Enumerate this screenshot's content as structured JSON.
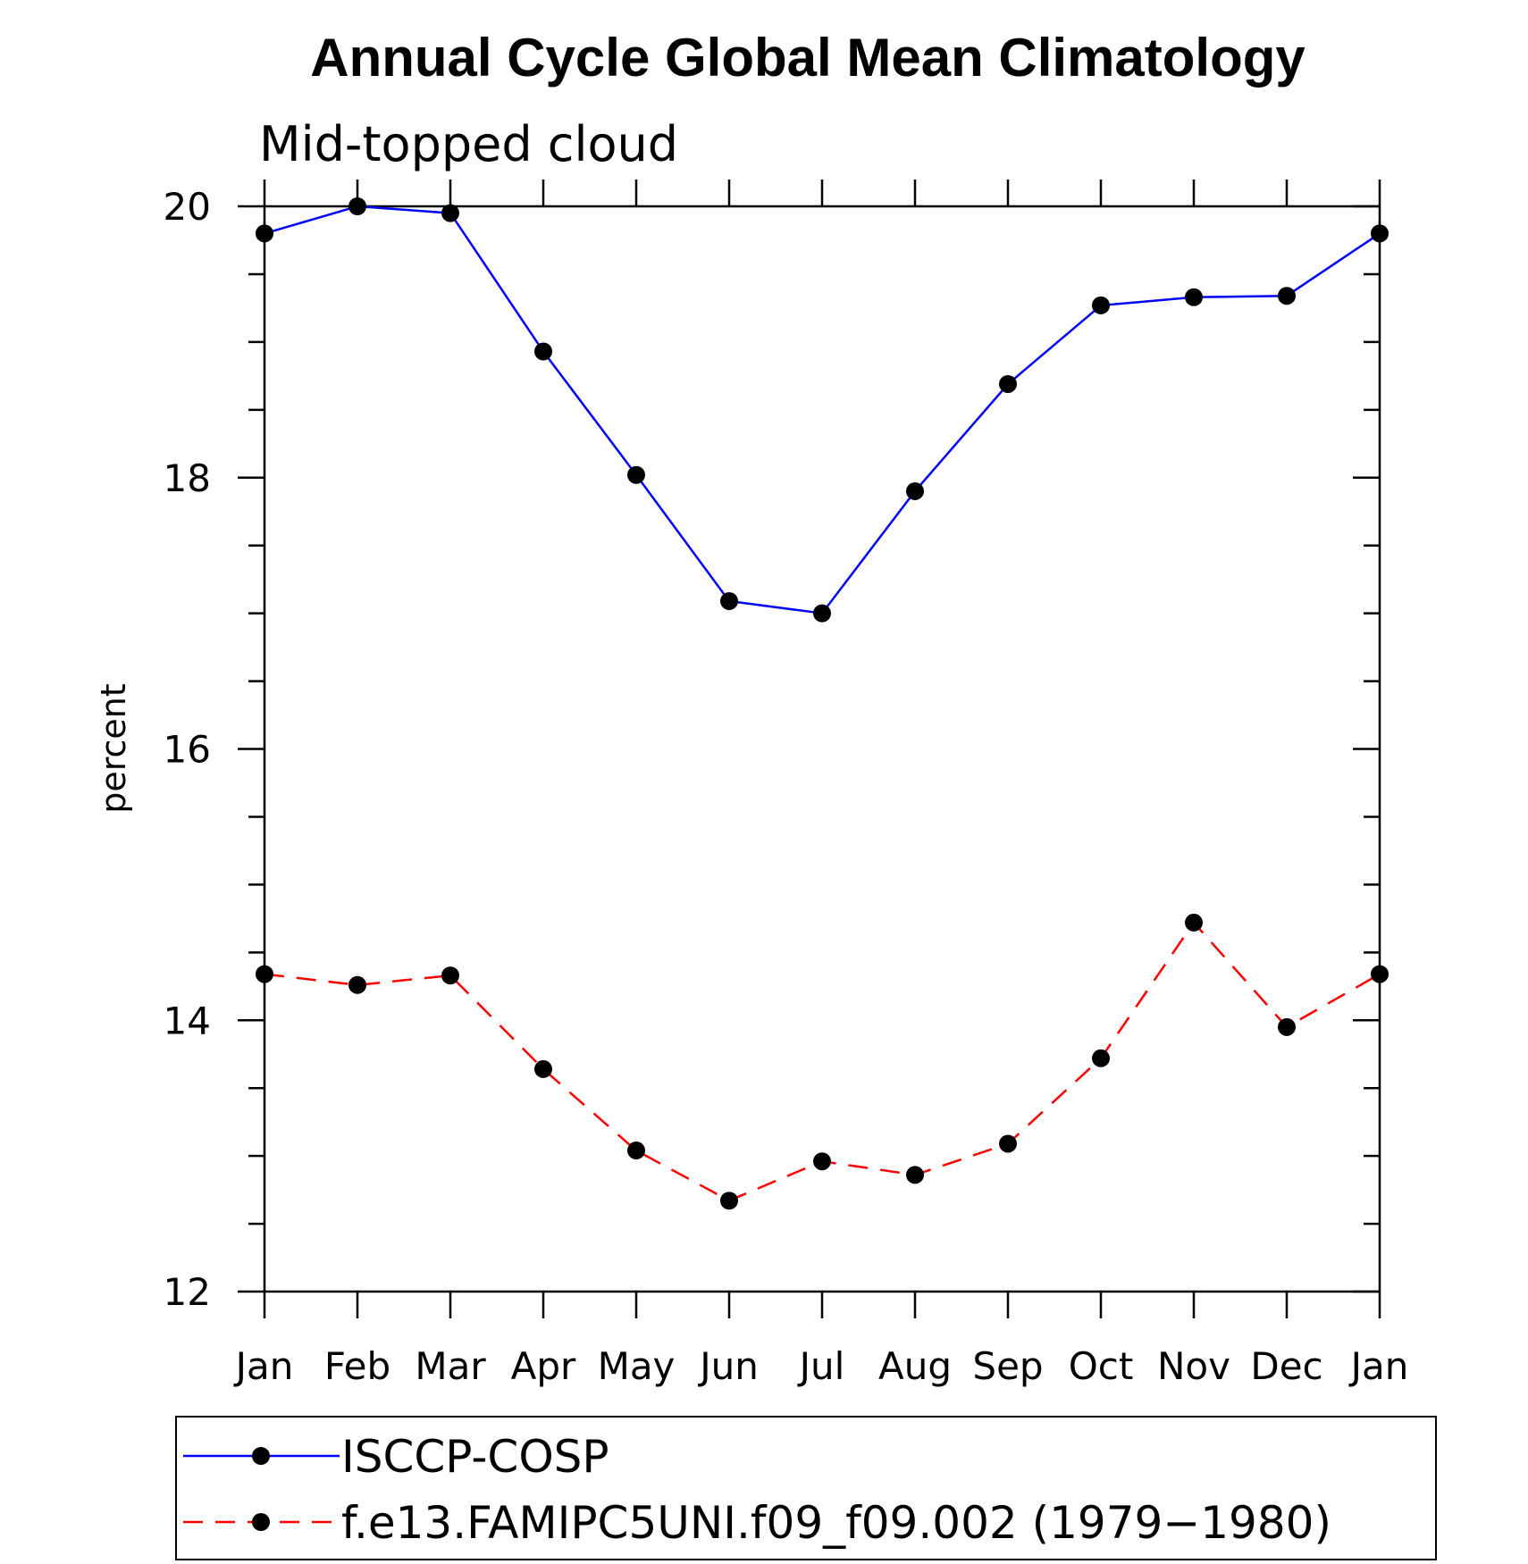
{
  "chart_data": {
    "type": "line",
    "title": "Annual Cycle Global Mean Climatology",
    "subtitle": "Mid-topped cloud",
    "xlabel": "",
    "ylabel": "percent",
    "categories": [
      "Jan",
      "Feb",
      "Mar",
      "Apr",
      "May",
      "Jun",
      "Jul",
      "Aug",
      "Sep",
      "Oct",
      "Nov",
      "Dec",
      "Jan"
    ],
    "ylim": [
      12,
      20
    ],
    "yticks": [
      12,
      14,
      16,
      18,
      20
    ],
    "ytick_labels": [
      "12",
      "14",
      "16",
      "18",
      "20"
    ],
    "series": [
      {
        "name": "ISCCP-COSP",
        "color": "#0000ff",
        "linestyle": "solid",
        "marker": "circle",
        "values": [
          19.8,
          20.0,
          19.95,
          18.93,
          18.02,
          17.09,
          17.0,
          17.9,
          18.69,
          19.27,
          19.33,
          19.34,
          19.8
        ]
      },
      {
        "name": "f.e13.FAMIPC5UNI.f09_f09.002 (1979−1980)",
        "color": "#ff0000",
        "linestyle": "dashed",
        "marker": "circle",
        "values": [
          14.34,
          14.26,
          14.33,
          13.64,
          13.04,
          12.67,
          12.96,
          12.86,
          13.09,
          13.72,
          14.72,
          13.95,
          14.34
        ]
      }
    ],
    "legend": {
      "position": "bottom"
    },
    "grid": false
  }
}
